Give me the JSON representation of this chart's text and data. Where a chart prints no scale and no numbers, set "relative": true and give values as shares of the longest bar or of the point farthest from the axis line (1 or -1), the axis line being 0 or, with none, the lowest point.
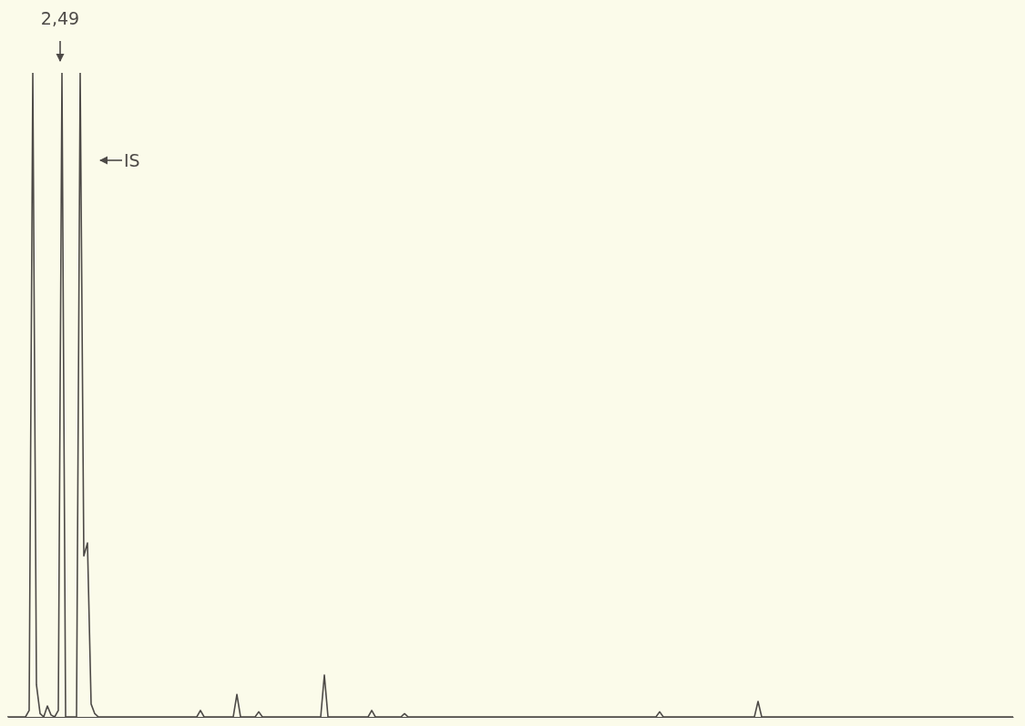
{
  "chart_data": {
    "type": "line",
    "relative": true,
    "color": "#4d4a47",
    "annotations": [
      "2,49",
      "IS"
    ],
    "categories": [
      null,
      null,
      null,
      null,
      null,
      null,
      null,
      null,
      null,
      null,
      null,
      null,
      null,
      null,
      null,
      null,
      null,
      null,
      null,
      null,
      null,
      null,
      null,
      null,
      null,
      null,
      null,
      null,
      null,
      null,
      null,
      null,
      null,
      null,
      null,
      null,
      null,
      null,
      null,
      null,
      null,
      null,
      null,
      null,
      null,
      null,
      null,
      null,
      null,
      null,
      null,
      null,
      null,
      null,
      null,
      null,
      null,
      null,
      null,
      null,
      null,
      null,
      null,
      null,
      null,
      null,
      null,
      null,
      null,
      null,
      null,
      null,
      null,
      null,
      null,
      null,
      null,
      null,
      null,
      null,
      null,
      null,
      null,
      null,
      null,
      null,
      null,
      null,
      null,
      null,
      null,
      null,
      null,
      null,
      null,
      null,
      null,
      null,
      null,
      null,
      null,
      null,
      null,
      null,
      null,
      null,
      null,
      null,
      null,
      null,
      null,
      null,
      null,
      null,
      null,
      null,
      null,
      null,
      null,
      null,
      null,
      null,
      null,
      null,
      null,
      null,
      null,
      null,
      null,
      null,
      null,
      null,
      null,
      null,
      null,
      null,
      null,
      null,
      null,
      null,
      null,
      null,
      null,
      null,
      null,
      null,
      null,
      null,
      null,
      null,
      null,
      null,
      null,
      null,
      null,
      null,
      null,
      null,
      null,
      null,
      null,
      null,
      null,
      null,
      null,
      null,
      null,
      null,
      null,
      null,
      null,
      null,
      null,
      null,
      null,
      null,
      null,
      null,
      null,
      null,
      null,
      null,
      null,
      null,
      null,
      null,
      null,
      null,
      null,
      null,
      null,
      null,
      null,
      null,
      null,
      null,
      null,
      null,
      null,
      null,
      null,
      null,
      null,
      null,
      null,
      null,
      null,
      null,
      null,
      null,
      null,
      null,
      null,
      null,
      null,
      null,
      null,
      null,
      null,
      null,
      null,
      null,
      null,
      null,
      null,
      null,
      null,
      null,
      null,
      null,
      null,
      null,
      null,
      null,
      null,
      null,
      null,
      null,
      null,
      null,
      null,
      null,
      null,
      null,
      null,
      null,
      null,
      null,
      null,
      null,
      null,
      null,
      null,
      null,
      null,
      null,
      null,
      null,
      null,
      null,
      null,
      null,
      null,
      null,
      null,
      null,
      null,
      null,
      null,
      null,
      null,
      null,
      null,
      null,
      null,
      null,
      null
    ],
    "values": [
      0,
      0,
      0,
      0,
      0,
      0,
      0.01,
      1,
      0.05,
      0.005,
      0,
      0.017,
      0.003,
      0,
      0.01,
      1,
      0,
      0,
      0,
      0,
      1,
      0.25,
      0.27,
      0.02,
      0.005,
      0,
      0,
      0,
      0,
      0,
      0,
      0,
      0,
      0,
      0,
      0,
      0,
      0,
      0,
      0,
      0,
      0,
      0,
      0,
      0,
      0,
      0,
      0,
      0,
      0,
      0,
      0,
      0,
      0.01,
      0,
      0,
      0,
      0,
      0,
      0,
      0,
      0,
      0,
      0.035,
      0,
      0,
      0,
      0,
      0,
      0.008,
      0,
      0,
      0,
      0,
      0,
      0,
      0,
      0,
      0,
      0,
      0,
      0,
      0,
      0,
      0,
      0,
      0,
      0.065,
      0,
      0,
      0,
      0,
      0,
      0,
      0,
      0,
      0,
      0,
      0,
      0,
      0.01,
      0,
      0,
      0,
      0,
      0,
      0,
      0,
      0,
      0.005,
      0,
      0,
      0,
      0,
      0,
      0,
      0,
      0,
      0,
      0,
      0,
      0,
      0,
      0,
      0,
      0,
      0,
      0,
      0,
      0,
      0,
      0,
      0,
      0,
      0,
      0,
      0,
      0,
      0,
      0,
      0,
      0,
      0,
      0,
      0,
      0,
      0,
      0,
      0,
      0,
      0,
      0,
      0,
      0,
      0,
      0,
      0,
      0,
      0,
      0,
      0,
      0,
      0,
      0,
      0,
      0,
      0,
      0,
      0,
      0,
      0,
      0,
      0,
      0,
      0,
      0,
      0,
      0,
      0,
      0.008,
      0,
      0,
      0,
      0,
      0,
      0,
      0,
      0,
      0,
      0,
      0,
      0,
      0,
      0,
      0,
      0,
      0,
      0,
      0,
      0,
      0,
      0,
      0,
      0,
      0,
      0,
      0.024,
      0,
      0,
      0,
      0,
      0,
      0,
      0,
      0,
      0,
      0,
      0,
      0,
      0,
      0,
      0,
      0,
      0,
      0,
      0,
      0,
      0,
      0,
      0,
      0,
      0,
      0,
      0,
      0,
      0,
      0,
      0,
      0,
      0,
      0,
      0,
      0,
      0,
      0,
      0,
      0,
      0,
      0,
      0,
      0,
      0,
      0,
      0,
      0,
      0,
      0,
      0,
      0,
      0,
      0,
      0,
      0,
      0,
      0,
      0,
      0,
      0,
      0,
      0,
      0,
      0,
      0,
      0,
      0,
      0,
      0
    ]
  }
}
